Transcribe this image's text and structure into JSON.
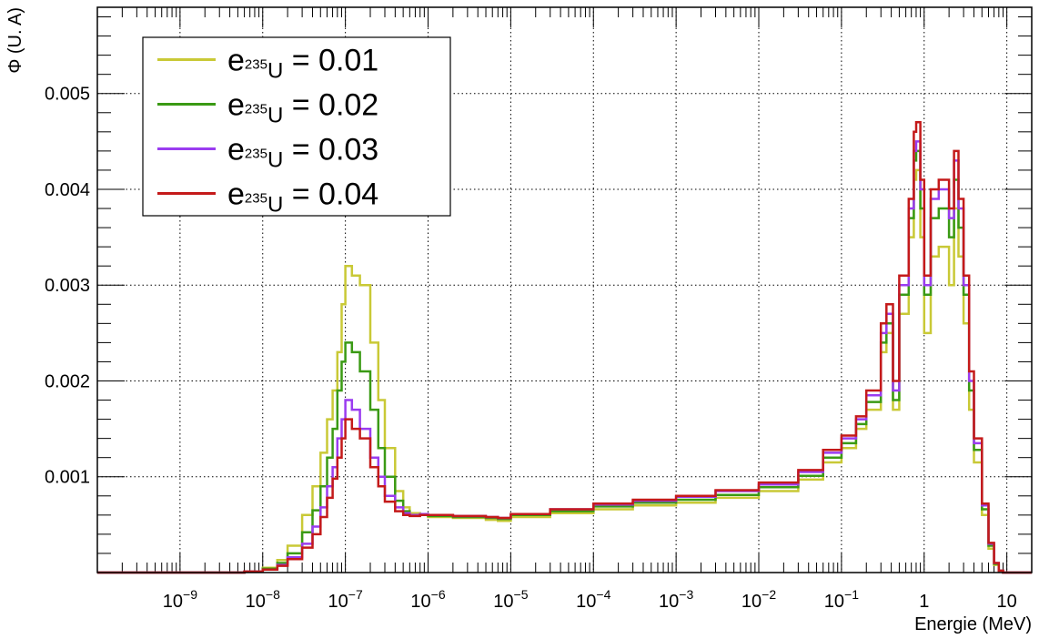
{
  "chart_data": {
    "type": "line",
    "title": "",
    "xlabel": "Energie (MeV)",
    "ylabel": "Φ (U. A)",
    "x_scale": "log",
    "xlim": [
      1e-10,
      20
    ],
    "ylim": [
      0,
      0.0059
    ],
    "grid": true,
    "legend_position": "top-left",
    "x_tick_labels": [
      {
        "value": 1e-09,
        "base": "10",
        "exp": "−9"
      },
      {
        "value": 1e-08,
        "base": "10",
        "exp": "−8"
      },
      {
        "value": 1e-07,
        "base": "10",
        "exp": "−7"
      },
      {
        "value": 1e-06,
        "base": "10",
        "exp": "−6"
      },
      {
        "value": 1e-05,
        "base": "10",
        "exp": "−5"
      },
      {
        "value": 0.0001,
        "base": "10",
        "exp": "−4"
      },
      {
        "value": 0.001,
        "base": "10",
        "exp": "−3"
      },
      {
        "value": 0.01,
        "base": "10",
        "exp": "−2"
      },
      {
        "value": 0.1,
        "base": "10",
        "exp": "−1"
      },
      {
        "value": 1,
        "base": "1",
        "exp": ""
      },
      {
        "value": 10,
        "base": "10",
        "exp": ""
      }
    ],
    "y_tick_labels": [
      {
        "value": 0.001,
        "label": "0.001"
      },
      {
        "value": 0.002,
        "label": "0.002"
      },
      {
        "value": 0.003,
        "label": "0.003"
      },
      {
        "value": 0.004,
        "label": "0.004"
      },
      {
        "value": 0.005,
        "label": "0.005"
      }
    ],
    "series": [
      {
        "name": "e235U = 0.01",
        "legend": {
          "base": "e",
          "sub": "235",
          "subU": "U",
          "value": "= 0.01"
        },
        "color": "#c9c936",
        "x": [
          1e-10,
          3e-09,
          6e-09,
          1e-08,
          1.5e-08,
          2e-08,
          3e-08,
          4e-08,
          5e-08,
          6e-08,
          7e-08,
          8e-08,
          9e-08,
          1e-07,
          1.2e-07,
          1.5e-07,
          2e-07,
          2.5e-07,
          3e-07,
          4e-07,
          5e-07,
          6e-07,
          8e-07,
          1e-06,
          2e-06,
          5e-06,
          7e-06,
          1e-05,
          3e-05,
          0.0001,
          0.0003,
          0.001,
          0.003,
          0.01,
          0.03,
          0.06,
          0.1,
          0.15,
          0.2,
          0.3,
          0.35,
          0.42,
          0.5,
          0.65,
          0.75,
          0.8,
          0.9,
          1.0,
          1.2,
          1.5,
          2.0,
          2.3,
          2.6,
          3.0,
          3.5,
          4.0,
          5.0,
          6.0,
          7.0,
          8.0,
          9.0,
          10,
          20
        ],
        "y": [
          0,
          0,
          1e-05,
          5e-05,
          0.00013,
          0.00028,
          0.0006,
          0.0009,
          0.00125,
          0.0016,
          0.0019,
          0.0023,
          0.0028,
          0.0032,
          0.0031,
          0.003,
          0.0024,
          0.0018,
          0.0013,
          0.00085,
          0.00068,
          0.00062,
          0.0006,
          0.00058,
          0.00057,
          0.00055,
          0.00054,
          0.00058,
          0.00062,
          0.00066,
          0.0007,
          0.00073,
          0.00078,
          0.00085,
          0.00097,
          0.00115,
          0.0013,
          0.0015,
          0.0017,
          0.0023,
          0.0025,
          0.0017,
          0.0027,
          0.0035,
          0.0041,
          0.0042,
          0.0035,
          0.0025,
          0.0033,
          0.0034,
          0.003,
          0.0038,
          0.0033,
          0.0026,
          0.0017,
          0.00115,
          0.0006,
          0.00025,
          8e-05,
          2e-05,
          0,
          0,
          0
        ]
      },
      {
        "name": "e235U = 0.02",
        "legend": {
          "base": "e",
          "sub": "235",
          "subU": "U",
          "value": "= 0.02"
        },
        "color": "#3a9a14",
        "x": [
          1e-10,
          3e-09,
          6e-09,
          1e-08,
          1.5e-08,
          2e-08,
          3e-08,
          4e-08,
          5e-08,
          6e-08,
          7e-08,
          8e-08,
          9e-08,
          1e-07,
          1.2e-07,
          1.5e-07,
          2e-07,
          2.5e-07,
          3e-07,
          4e-07,
          5e-07,
          6e-07,
          8e-07,
          1e-06,
          2e-06,
          5e-06,
          7e-06,
          1e-05,
          3e-05,
          0.0001,
          0.0003,
          0.001,
          0.003,
          0.01,
          0.03,
          0.06,
          0.1,
          0.15,
          0.2,
          0.3,
          0.35,
          0.42,
          0.5,
          0.65,
          0.75,
          0.8,
          0.9,
          1.0,
          1.2,
          1.5,
          2.0,
          2.3,
          2.6,
          3.0,
          3.5,
          4.0,
          5.0,
          6.0,
          7.0,
          8.0,
          9.0,
          10,
          20
        ],
        "y": [
          0,
          0,
          1e-05,
          4e-05,
          0.0001,
          0.0002,
          0.00042,
          0.00065,
          0.0009,
          0.0012,
          0.0015,
          0.0019,
          0.0022,
          0.0024,
          0.0023,
          0.0021,
          0.0017,
          0.0013,
          0.001,
          0.00075,
          0.00064,
          0.0006,
          0.0006,
          0.00059,
          0.00058,
          0.00057,
          0.00056,
          0.0006,
          0.00064,
          0.00069,
          0.00073,
          0.00076,
          0.00081,
          0.00089,
          0.00101,
          0.0012,
          0.00135,
          0.00155,
          0.00178,
          0.0024,
          0.0026,
          0.0018,
          0.0029,
          0.0037,
          0.0043,
          0.0044,
          0.0038,
          0.0029,
          0.0037,
          0.0038,
          0.0035,
          0.0041,
          0.0036,
          0.0029,
          0.0019,
          0.00128,
          0.00066,
          0.00028,
          9e-05,
          2e-05,
          0,
          0,
          0
        ]
      },
      {
        "name": "e235U = 0.03",
        "legend": {
          "base": "e",
          "sub": "235",
          "subU": "U",
          "value": "= 0.03"
        },
        "color": "#9a3cf0",
        "x": [
          1e-10,
          3e-09,
          6e-09,
          1e-08,
          1.5e-08,
          2e-08,
          3e-08,
          4e-08,
          5e-08,
          6e-08,
          7e-08,
          8e-08,
          9e-08,
          1e-07,
          1.2e-07,
          1.5e-07,
          2e-07,
          2.5e-07,
          3e-07,
          4e-07,
          5e-07,
          6e-07,
          8e-07,
          1e-06,
          2e-06,
          5e-06,
          7e-06,
          1e-05,
          3e-05,
          0.0001,
          0.0003,
          0.001,
          0.003,
          0.01,
          0.03,
          0.06,
          0.1,
          0.15,
          0.2,
          0.3,
          0.35,
          0.42,
          0.5,
          0.65,
          0.75,
          0.8,
          0.9,
          1.0,
          1.2,
          1.5,
          2.0,
          2.3,
          2.6,
          3.0,
          3.5,
          4.0,
          5.0,
          6.0,
          7.0,
          8.0,
          9.0,
          10,
          20
        ],
        "y": [
          0,
          0,
          1e-05,
          3e-05,
          8e-05,
          0.00016,
          0.0003,
          0.00048,
          0.00068,
          0.0009,
          0.0011,
          0.0014,
          0.0016,
          0.0018,
          0.0017,
          0.0015,
          0.0012,
          0.001,
          0.0008,
          0.00068,
          0.00062,
          0.0006,
          0.00061,
          0.0006,
          0.00059,
          0.00058,
          0.00057,
          0.00061,
          0.00066,
          0.00071,
          0.00075,
          0.00079,
          0.00085,
          0.00092,
          0.00105,
          0.00125,
          0.0014,
          0.0016,
          0.00185,
          0.0025,
          0.0027,
          0.0019,
          0.003,
          0.0038,
          0.0044,
          0.0045,
          0.004,
          0.003,
          0.0039,
          0.004,
          0.0037,
          0.0043,
          0.0038,
          0.003,
          0.002,
          0.00135,
          0.0007,
          0.0003,
          0.0001,
          2e-05,
          0,
          0,
          0
        ]
      },
      {
        "name": "e235U = 0.04",
        "legend": {
          "base": "e",
          "sub": "235",
          "subU": "U",
          "value": "= 0.04"
        },
        "color": "#c41a1a",
        "x": [
          1e-10,
          3e-09,
          6e-09,
          1e-08,
          1.5e-08,
          2e-08,
          3e-08,
          4e-08,
          5e-08,
          6e-08,
          7e-08,
          8e-08,
          9e-08,
          1e-07,
          1.2e-07,
          1.5e-07,
          2e-07,
          2.5e-07,
          3e-07,
          4e-07,
          5e-07,
          6e-07,
          8e-07,
          1e-06,
          2e-06,
          5e-06,
          7e-06,
          1e-05,
          3e-05,
          0.0001,
          0.0003,
          0.001,
          0.003,
          0.01,
          0.03,
          0.06,
          0.1,
          0.15,
          0.2,
          0.3,
          0.35,
          0.42,
          0.5,
          0.65,
          0.75,
          0.8,
          0.9,
          1.0,
          1.2,
          1.5,
          2.0,
          2.3,
          2.6,
          3.0,
          3.5,
          4.0,
          5.0,
          6.0,
          7.0,
          8.0,
          9.0,
          10,
          20
        ],
        "y": [
          0,
          0,
          1e-05,
          3e-05,
          7e-05,
          0.00014,
          0.00026,
          0.0004,
          0.00058,
          0.00078,
          0.00098,
          0.0012,
          0.0014,
          0.0016,
          0.0015,
          0.0014,
          0.0011,
          0.0009,
          0.00074,
          0.00064,
          0.0006,
          0.00059,
          0.0006,
          0.0006,
          0.00059,
          0.00058,
          0.00057,
          0.00061,
          0.00066,
          0.00072,
          0.00076,
          0.0008,
          0.00086,
          0.00094,
          0.00107,
          0.00128,
          0.00143,
          0.00163,
          0.0019,
          0.0026,
          0.0028,
          0.002,
          0.0031,
          0.0039,
          0.0046,
          0.0047,
          0.0041,
          0.0031,
          0.004,
          0.0041,
          0.0038,
          0.0044,
          0.0039,
          0.0031,
          0.0021,
          0.0014,
          0.00072,
          0.00031,
          0.0001,
          2e-05,
          0,
          0,
          0
        ]
      }
    ]
  }
}
